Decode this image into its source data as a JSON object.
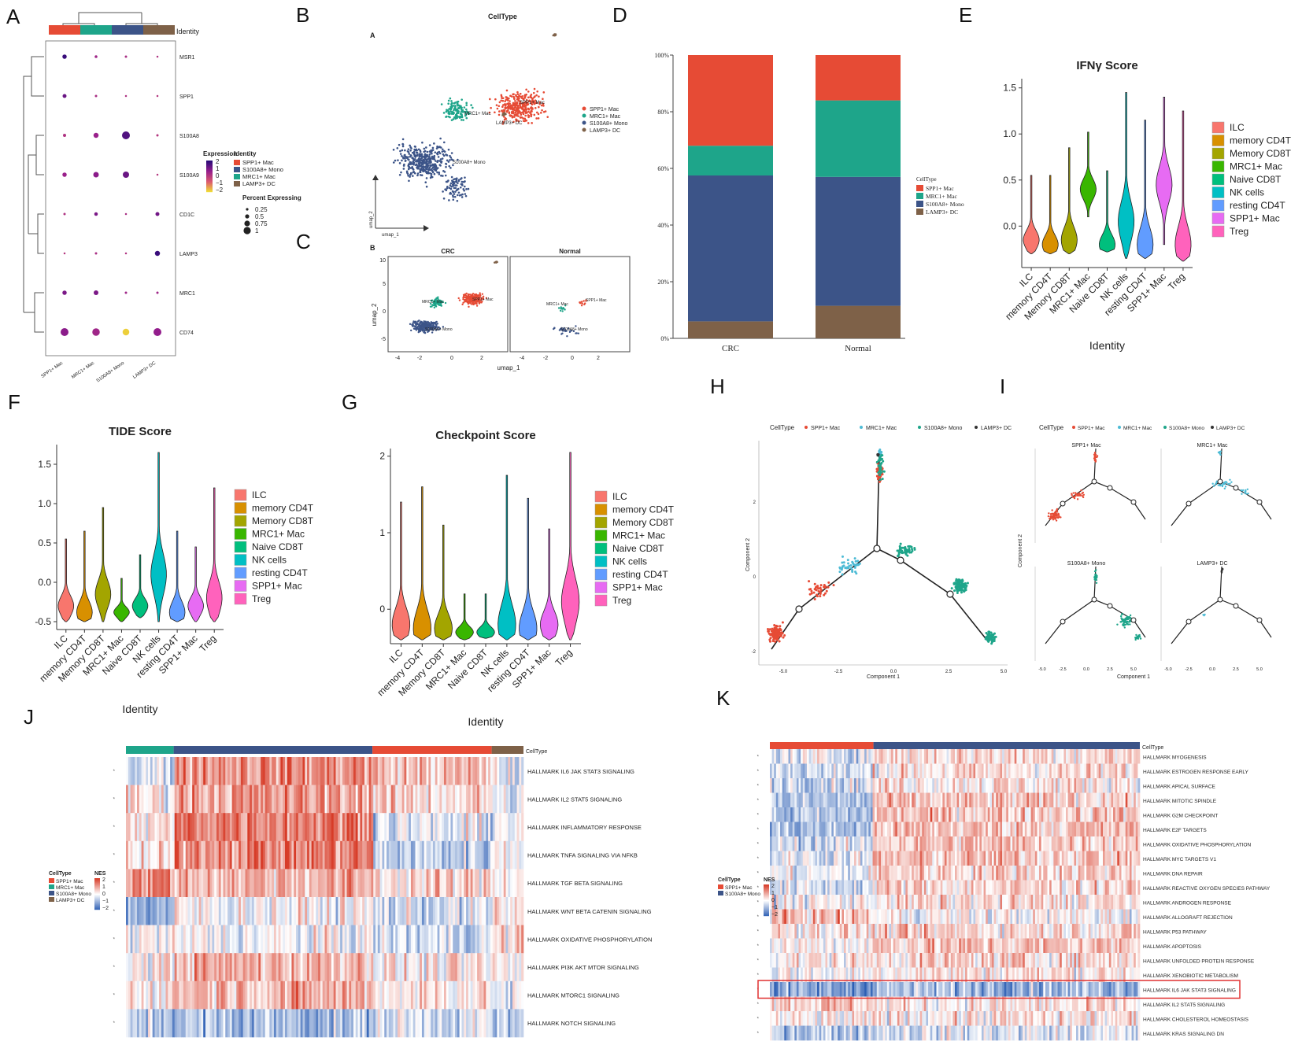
{
  "figure": {
    "panel_letters": [
      "A",
      "B",
      "C",
      "D",
      "E",
      "F",
      "G",
      "H",
      "I",
      "J",
      "K"
    ],
    "panel_sublabels": {
      "b_inner": "A",
      "c_inner": "B"
    }
  },
  "panel_a": {
    "legend_identity_title": "Identity",
    "top_bar_label": "Identity",
    "expression_title": "Expression",
    "expression_ticks": [
      "2",
      "1",
      "0",
      "−1",
      "−2"
    ],
    "percent_title": "Percent Expressing",
    "percent_ticks": [
      "0.25",
      "0.5",
      "0.75",
      "1"
    ],
    "identities": [
      "SPP1+ Mac",
      "S100A8+ Mono",
      "MRC1+ Mac",
      "LAMP3+ DC"
    ],
    "identity_colors": [
      "#e64b35",
      "#3c5488",
      "#1ea58a",
      "#7e6148"
    ],
    "columns": [
      "SPP1+ Mac",
      "MRC1+ Mac",
      "S100A8+ Mono",
      "LAMP3+ DC"
    ],
    "column_colors": [
      "#e64b35",
      "#1ea58a",
      "#3c5488",
      "#7e6148"
    ],
    "genes": [
      "MSR1",
      "SPP1",
      "S100A8",
      "S100A9",
      "CD1C",
      "LAMP3",
      "MRC1",
      "CD74"
    ],
    "dot_size": [
      [
        0.35,
        0.15,
        0.1,
        0.05
      ],
      [
        0.3,
        0.1,
        0.05,
        0.05
      ],
      [
        0.2,
        0.45,
        0.8,
        0.1
      ],
      [
        0.35,
        0.5,
        0.6,
        0.05
      ],
      [
        0.1,
        0.25,
        0.05,
        0.3
      ],
      [
        0.05,
        0.1,
        0.05,
        0.45
      ],
      [
        0.35,
        0.4,
        0.1,
        0.1
      ],
      [
        0.8,
        0.75,
        0.65,
        0.8
      ]
    ],
    "dot_expr": [
      [
        1.8,
        0.5,
        0.3,
        0.2
      ],
      [
        1.2,
        0.3,
        0.2,
        0.1
      ],
      [
        0.2,
        0.6,
        1.5,
        0.1
      ],
      [
        0.6,
        0.8,
        1.2,
        0.1
      ],
      [
        0.2,
        1.0,
        0.3,
        1.1
      ],
      [
        0.1,
        0.3,
        0.2,
        1.8
      ],
      [
        1.0,
        1.0,
        0.5,
        0.5
      ],
      [
        0.8,
        0.5,
        -1.8,
        0.7
      ]
    ]
  },
  "panel_b": {
    "title": "CellType",
    "legend": [
      "SPP1+ Mac",
      "MRC1+ Mac",
      "S100A8+ Mono",
      "LAMP3+ DC"
    ],
    "colors": [
      "#e64b35",
      "#1ea58a",
      "#3c5488",
      "#7e6148"
    ],
    "cluster_labels": [
      "SPP1+ Mac",
      "MRC1+ Mac",
      "S100A8+ Mono",
      "LAMP3+ DC"
    ],
    "xlabel": "umap_1",
    "ylabel": "umap_2"
  },
  "panel_c": {
    "facets": [
      "CRC",
      "Normal"
    ],
    "xlabel": "umap_1",
    "ylabel": "umap_2",
    "xticks": [
      "-4",
      "-2",
      "0",
      "2",
      "-4",
      "-2",
      "0",
      "2"
    ],
    "yticks": [
      "10",
      "5",
      "0",
      "-5"
    ]
  },
  "chart_data": [
    {
      "panel": "D",
      "type": "bar",
      "stacked": true,
      "categories": [
        "CRC",
        "Normal"
      ],
      "legend_title": "CellType",
      "series": [
        {
          "name": "SPP1+ Mac",
          "color": "#e64b35",
          "values": [
            32,
            16
          ]
        },
        {
          "name": "MRC1+ Mac",
          "color": "#1ea58a",
          "values": [
            10.5,
            27
          ]
        },
        {
          "name": "S100A8+ Mono",
          "color": "#3c5488",
          "values": [
            51.5,
            45.5
          ]
        },
        {
          "name": "LAMP3+ DC",
          "color": "#7e6148",
          "values": [
            6,
            11.5
          ]
        }
      ],
      "yticks": [
        "0%",
        "20%",
        "40%",
        "60%",
        "80%",
        "100%"
      ],
      "ylim": [
        0,
        100
      ]
    },
    {
      "panel": "E",
      "type": "violin",
      "title": "IFNγ Score",
      "xlabel": "Identity",
      "categories": [
        "ILC",
        "memory CD4T",
        "Memory CD8T",
        "MRC1+ Mac",
        "Naive CD8T",
        "NK cells",
        "resting CD4T",
        "SPP1+ Mac",
        "Treg"
      ],
      "colors": [
        "#f8766d",
        "#d89000",
        "#a3a500",
        "#39b600",
        "#00bf7d",
        "#00bfc4",
        "#619cff",
        "#e76bf3",
        "#ff62bc"
      ],
      "median": [
        -0.15,
        -0.2,
        -0.15,
        0.4,
        -0.2,
        0.05,
        -0.2,
        0.45,
        -0.2
      ],
      "min": [
        -0.3,
        -0.3,
        -0.3,
        0.1,
        -0.28,
        -0.35,
        -0.35,
        -0.2,
        -0.38
      ],
      "max": [
        0.55,
        0.55,
        0.85,
        1.02,
        0.6,
        1.45,
        1.15,
        1.4,
        1.25
      ],
      "yticks": [
        "0.0",
        "0.5",
        "1.0",
        "1.5"
      ],
      "ylim": [
        -0.45,
        1.6
      ]
    },
    {
      "panel": "F",
      "type": "violin",
      "title": "TIDE Score",
      "xlabel": "Identity",
      "categories": [
        "ILC",
        "memory CD4T",
        "Memory CD8T",
        "MRC1+ Mac",
        "Naive CD8T",
        "NK cells",
        "resting CD4T",
        "SPP1+ Mac",
        "Treg"
      ],
      "colors": [
        "#f8766d",
        "#d89000",
        "#a3a500",
        "#39b600",
        "#00bf7d",
        "#00bfc4",
        "#619cff",
        "#e76bf3",
        "#ff62bc"
      ],
      "median": [
        -0.3,
        -0.38,
        -0.15,
        -0.38,
        -0.3,
        0.1,
        -0.38,
        -0.3,
        -0.2
      ],
      "min": [
        -0.5,
        -0.5,
        -0.5,
        -0.5,
        -0.45,
        -0.5,
        -0.5,
        -0.5,
        -0.5
      ],
      "max": [
        0.55,
        0.65,
        0.95,
        0.05,
        0.35,
        1.65,
        0.65,
        0.45,
        1.2
      ],
      "yticks": [
        "-0.5",
        "0.0",
        "0.5",
        "1.0",
        "1.5"
      ],
      "ylim": [
        -0.6,
        1.75
      ]
    },
    {
      "panel": "G",
      "type": "violin",
      "title": "Checkpoint Score",
      "xlabel": "Identity",
      "categories": [
        "ILC",
        "memory CD4T",
        "Memory CD8T",
        "MRC1+ Mac",
        "Naive CD8T",
        "NK cells",
        "resting CD4T",
        "SPP1+ Mac",
        "Treg"
      ],
      "colors": [
        "#f8766d",
        "#d89000",
        "#a3a500",
        "#39b600",
        "#00bf7d",
        "#00bfc4",
        "#619cff",
        "#e76bf3",
        "#ff62bc"
      ],
      "median": [
        -0.2,
        -0.25,
        -0.25,
        -0.3,
        -0.3,
        -0.2,
        -0.25,
        -0.2,
        0.1
      ],
      "min": [
        -0.4,
        -0.4,
        -0.4,
        -0.4,
        -0.38,
        -0.4,
        -0.4,
        -0.4,
        -0.4
      ],
      "max": [
        1.4,
        1.6,
        1.1,
        0.2,
        0.2,
        1.75,
        1.45,
        1.05,
        2.05
      ],
      "yticks": [
        "0",
        "1",
        "2"
      ],
      "ylim": [
        -0.45,
        2.1
      ]
    }
  ],
  "panel_h": {
    "legend_title": "CellType",
    "legend": [
      "SPP1+ Mac",
      "MRC1+ Mac",
      "S100A8+ Mono",
      "LAMP3+ DC"
    ],
    "colors": [
      "#e64b35",
      "#4dbbd5",
      "#1ea58a",
      "#333333"
    ],
    "xlabel": "Component 1",
    "ylabel": "Component 2",
    "xticks": [
      "-5.0",
      "-2.5",
      "0.0",
      "2.5",
      "5.0"
    ],
    "yticks": [
      "2",
      "0",
      "-2"
    ]
  },
  "panel_i": {
    "legend_title": "CellType",
    "legend": [
      "SPP1+ Mac",
      "MRC1+ Mac",
      "S100A8+ Mono",
      "LAMP3+ DC"
    ],
    "facets": [
      "SPP1+ Mac",
      "MRC1+ Mac",
      "S100A8+ Mono",
      "LAMP3+ DC"
    ],
    "xlabel": "Component 1",
    "ylabel": "Component 2",
    "xticks": [
      "-5.0",
      "-2.5",
      "0.0",
      "2.5",
      "5.0"
    ]
  },
  "panel_j": {
    "annotation_label": "CellType",
    "pathways": [
      "HALLMARK IL6 JAK STAT3 SIGNALING",
      "HALLMARK IL2 STAT5 SIGNALING",
      "HALLMARK INFLAMMATORY RESPONSE",
      "HALLMARK TNFA SIGNALING VIA NFKB",
      "HALLMARK TGF BETA SIGNALING",
      "HALLMARK WNT BETA CATENIN SIGNALING",
      "HALLMARK OXIDATIVE PHOSPHORYLATION",
      "HALLMARK PI3K AKT MTOR SIGNALING",
      "HALLMARK MTORC1 SIGNALING",
      "HALLMARK NOTCH SIGNALING"
    ],
    "legend_celltype_title": "CellType",
    "legend_celltypes": [
      "SPP1+ Mac",
      "MRC1+ Mac",
      "S100A8+ Mono",
      "LAMP3+ DC"
    ],
    "legend_colors": [
      "#e64b35",
      "#1ea58a",
      "#3c5488",
      "#7e6148"
    ],
    "nes_title": "NES",
    "nes_ticks": [
      "2",
      "1",
      "0",
      "−1",
      "−2"
    ],
    "group_order": [
      "MRC1+ Mac",
      "S100A8+ Mono",
      "SPP1+ Mac",
      "LAMP3+ DC"
    ],
    "group_fraction": [
      0.12,
      0.5,
      0.3,
      0.08
    ]
  },
  "panel_k": {
    "annotation_label": "CellType",
    "pathways": [
      "HALLMARK MYOGENESIS",
      "HALLMARK ESTROGEN RESPONSE EARLY",
      "HALLMARK APICAL SURFACE",
      "HALLMARK MITOTIC SPINDLE",
      "HALLMARK G2M CHECKPOINT",
      "HALLMARK E2F TARGETS",
      "HALLMARK OXIDATIVE PHOSPHORYLATION",
      "HALLMARK MYC TARGETS V1",
      "HALLMARK DNA REPAIR",
      "HALLMARK REACTIVE OXYGEN SPECIES PATHWAY",
      "HALLMARK ANDROGEN RESPONSE",
      "HALLMARK ALLOGRAFT REJECTION",
      "HALLMARK P53 PATHWAY",
      "HALLMARK APOPTOSIS",
      "HALLMARK UNFOLDED PROTEIN RESPONSE",
      "HALLMARK XENOBIOTIC METABOLISM",
      "HALLMARK IL6 JAK STAT3 SIGNALING",
      "HALLMARK IL2 STAT5 SIGNALING",
      "HALLMARK CHOLESTEROL HOMEOSTASIS",
      "HALLMARK KRAS SIGNALING DN"
    ],
    "highlighted": "HALLMARK IL6 JAK STAT3 SIGNALING",
    "legend_celltype_title": "CellType",
    "legend_celltypes": [
      "SPP1+ Mac",
      "S100A8+ Mono"
    ],
    "legend_colors": [
      "#e64b35",
      "#3c5488"
    ],
    "nes_title": "NES",
    "nes_ticks": [
      "2",
      "1",
      "0",
      "−1",
      "−2"
    ],
    "group_order": [
      "SPP1+ Mac",
      "S100A8+ Mono"
    ],
    "group_fraction": [
      0.28,
      0.72
    ]
  }
}
